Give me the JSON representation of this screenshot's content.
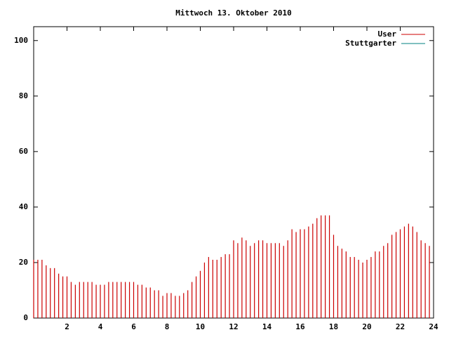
{
  "chart_data": {
    "type": "impulse",
    "title": "Mittwoch 13. Oktober 2010",
    "x": [
      0,
      0.25,
      0.5,
      0.75,
      1,
      1.25,
      1.5,
      1.75,
      2,
      2.25,
      2.5,
      2.75,
      3,
      3.25,
      3.5,
      3.75,
      4,
      4.25,
      4.5,
      4.75,
      5,
      5.25,
      5.5,
      5.75,
      6,
      6.25,
      6.5,
      6.75,
      7,
      7.25,
      7.5,
      7.75,
      8,
      8.25,
      8.5,
      8.75,
      9,
      9.25,
      9.5,
      9.75,
      10,
      10.25,
      10.5,
      10.75,
      11,
      11.25,
      11.5,
      11.75,
      12,
      12.25,
      12.5,
      12.75,
      13,
      13.25,
      13.5,
      13.75,
      14,
      14.25,
      14.5,
      14.75,
      15,
      15.25,
      15.5,
      15.75,
      16,
      16.25,
      16.5,
      16.75,
      17,
      17.25,
      17.5,
      17.75,
      18,
      18.25,
      18.5,
      18.75,
      19,
      19.25,
      19.5,
      19.75,
      20,
      20.25,
      20.5,
      20.75,
      21,
      21.25,
      21.5,
      21.75,
      22,
      22.25,
      22.5,
      22.75,
      23,
      23.25,
      23.5,
      23.75
    ],
    "series": [
      {
        "name": "User",
        "color": "#cc0000",
        "values": [
          21,
          21,
          21,
          19,
          18,
          18,
          16,
          15,
          15,
          13,
          12,
          13,
          13,
          13,
          13,
          12,
          12,
          12,
          13,
          13,
          13,
          13,
          13,
          13,
          13,
          12,
          12,
          11,
          11,
          10,
          10,
          8,
          9,
          9,
          8,
          8,
          9,
          10,
          13,
          15,
          17,
          20,
          22,
          21,
          21,
          22,
          23,
          23,
          28,
          27,
          29,
          28,
          26,
          27,
          28,
          28,
          27,
          27,
          27,
          27,
          26,
          28,
          32,
          31,
          32,
          32,
          33,
          34,
          36,
          37,
          37,
          37,
          30,
          26,
          25,
          24,
          22,
          22,
          21,
          20,
          21,
          22,
          24,
          24,
          26,
          27,
          30,
          31,
          32,
          33,
          34,
          33,
          31,
          28,
          27,
          26
        ]
      },
      {
        "name": "Stuttgarter",
        "color": "#008080",
        "values": [
          null,
          null,
          null,
          null,
          null,
          null,
          null,
          null,
          null,
          null,
          null,
          null,
          null,
          null,
          null,
          null,
          null,
          null,
          null,
          null,
          null,
          null,
          null,
          null,
          null,
          null,
          null,
          null,
          null,
          null,
          null,
          null,
          null,
          null,
          null,
          null,
          null,
          null,
          null,
          null,
          null,
          null,
          null,
          null,
          null,
          null,
          null,
          null,
          null,
          null,
          null,
          null,
          null,
          null,
          null,
          null,
          null,
          null,
          null,
          null,
          null,
          null,
          null,
          null,
          null,
          null,
          null,
          null,
          null,
          null,
          null,
          null,
          null,
          null,
          null,
          null,
          null,
          null,
          null,
          null,
          null,
          null,
          null,
          null,
          null,
          null,
          null,
          null,
          null,
          null,
          null,
          null,
          null,
          null,
          null,
          null
        ]
      }
    ],
    "xlim": [
      0,
      24
    ],
    "xticks": [
      2,
      4,
      6,
      8,
      10,
      12,
      14,
      16,
      18,
      20,
      22,
      24
    ],
    "ylim": [
      0,
      105
    ],
    "yticks": [
      0,
      20,
      40,
      60,
      80,
      100
    ],
    "legend": "top-right"
  }
}
